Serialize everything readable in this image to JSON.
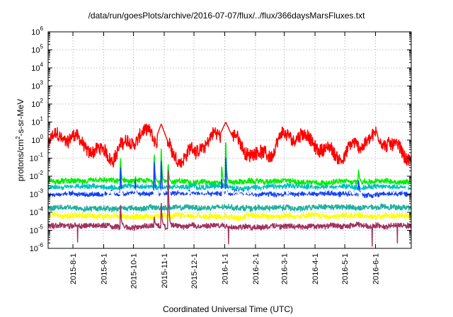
{
  "chart_data": {
    "type": "line",
    "title": "/data/run/goesPlots/archive/2016-07-07/flux/../flux/366daysMarsFluxes.txt",
    "xlabel": "Coordinated Universal Time (UTC)",
    "ylabel_parts": [
      "protons/cm",
      "2",
      "-s-sr-MeV"
    ],
    "yscale": "log",
    "ylim_exponents": [
      -6,
      6
    ],
    "y_tick_labels": [
      {
        "base": "10",
        "exp": "-6"
      },
      {
        "base": "10",
        "exp": "-5"
      },
      {
        "base": "10",
        "exp": "-4"
      },
      {
        "base": "10",
        "exp": "-3"
      },
      {
        "base": "10",
        "exp": "-2"
      },
      {
        "base": "10",
        "exp": "-1"
      },
      {
        "base": "10",
        "exp": "0"
      },
      {
        "base": "10",
        "exp": "1"
      },
      {
        "base": "10",
        "exp": "2"
      },
      {
        "base": "10",
        "exp": "3"
      },
      {
        "base": "10",
        "exp": "4"
      },
      {
        "base": "10",
        "exp": "5"
      },
      {
        "base": "10",
        "exp": "6"
      }
    ],
    "xlim": [
      "2015-07-07",
      "2016-07-07"
    ],
    "x_ticks": [
      "2015-8-1",
      "2015-9-1",
      "2015-10-1",
      "2015-11-1",
      "2015-12-1",
      "2016-1-1",
      "2016-2-1",
      "2016-3-1",
      "2016-4-1",
      "2016-5-1",
      "2016-6-1"
    ],
    "x_tick_dates": [
      "2015-08-01",
      "2015-09-01",
      "2015-10-01",
      "2015-11-01",
      "2015-12-01",
      "2016-01-01",
      "2016-02-01",
      "2016-03-01",
      "2016-04-01",
      "2016-05-01",
      "2016-06-01"
    ],
    "grid": true,
    "series": [
      {
        "color": "#ff0000",
        "typical_log10": -0.3,
        "range_log10": [
          -1.5,
          1.2
        ]
      },
      {
        "color": "#00ee00",
        "typical_log10": -2.3,
        "range_log10": [
          -2.8,
          0.4
        ]
      },
      {
        "color": "#00c0c0",
        "typical_log10": -2.6,
        "range_log10": [
          -3.3,
          -1.8
        ]
      },
      {
        "color": "#1040ff",
        "typical_log10": -2.95,
        "range_log10": [
          -3.4,
          0.0
        ]
      },
      {
        "color": "#ffffff",
        "typical_log10": -2.8,
        "range_log10": [
          -3.0,
          -2.5
        ]
      },
      {
        "color": "#20b0a0",
        "typical_log10": -3.75,
        "range_log10": [
          -4.1,
          -3.3
        ]
      },
      {
        "color": "#ffff00",
        "typical_log10": -4.2,
        "range_log10": [
          -4.5,
          -3.8
        ]
      },
      {
        "color": "#a03060",
        "typical_log10": -4.75,
        "range_log10": [
          -6.0,
          -1.2
        ]
      }
    ],
    "events": [
      {
        "date": "2015-09-18",
        "log10_peak": {
          "#00ee00": -0.9,
          "#1040ff": -1.4,
          "#a03060": -3.5
        }
      },
      {
        "date": "2015-10-03",
        "log10_peak": {
          "#00ee00": -2.0,
          "#1040ff": -2.1
        }
      },
      {
        "date": "2015-10-22",
        "log10_peak": {
          "#00ee00": -0.6,
          "#1040ff": -1.0,
          "#a03060": -4.2
        }
      },
      {
        "date": "2015-10-29",
        "log10_peak": {
          "#00ee00": -0.2,
          "#1040ff": -0.9,
          "#a03060": -3.3
        }
      },
      {
        "date": "2015-11-05",
        "log10_peak": {
          "#00ee00": -1.2,
          "#1040ff": -2.0,
          "#a03060": -1.2
        }
      },
      {
        "date": "2015-12-29",
        "log10_peak": {
          "#00ee00": -1.3,
          "#1040ff": -2.0
        }
      },
      {
        "date": "2016-01-02",
        "log10_peak": {
          "#00ee00": 0.4,
          "#1040ff": -0.5
        }
      },
      {
        "date": "2016-05-15",
        "log10_peak": {
          "#00ee00": -1.6,
          "#1040ff": -2.2
        }
      }
    ]
  }
}
